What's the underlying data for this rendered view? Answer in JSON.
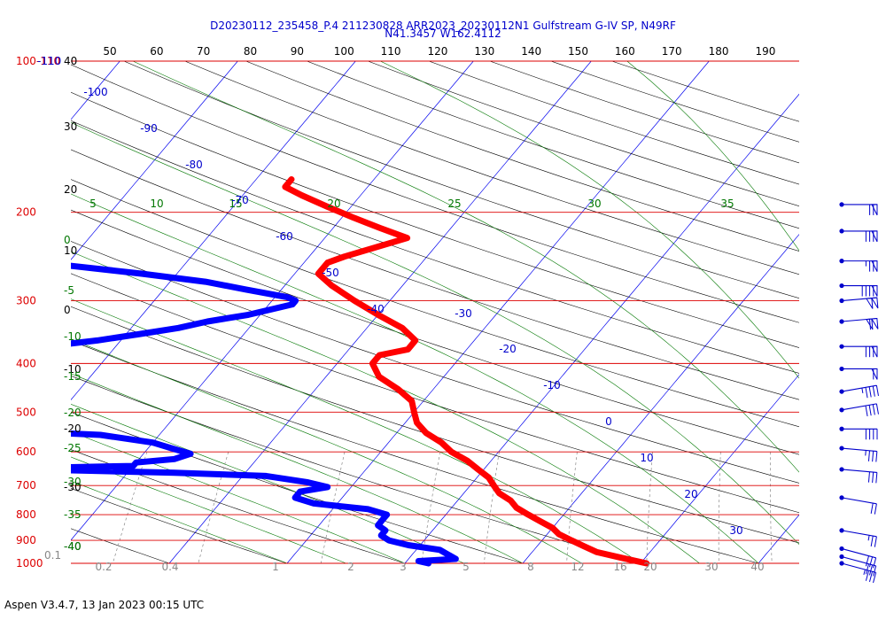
{
  "chart_data": {
    "type": "skew-t",
    "title_line1": "D20230112_235458_P.4 211230828 ARR2023_20230112N1 Gulfstream G-IV SP, N49RF",
    "title_line2": "N41.3457 W162.4112",
    "footer": "Aspen V3.4.7, 13 Jan 2023  00:15 UTC",
    "pressure_labels": [
      "100-110",
      "200",
      "300",
      "400",
      "500",
      "600",
      "700",
      "800",
      "900",
      "1000"
    ],
    "pressure_levels": [
      100,
      200,
      300,
      400,
      500,
      600,
      700,
      800,
      900,
      1000
    ],
    "top_ticks": [
      "50",
      "60",
      "70",
      "80",
      "90",
      "100",
      "110",
      "120",
      "130",
      "140",
      "150",
      "160",
      "170",
      "180",
      "190"
    ],
    "left_black_labels": [
      "40",
      "30",
      "20",
      "10",
      "0",
      "-10",
      "-20",
      "-30",
      "-40"
    ],
    "left_green_labels": [
      "0",
      "-5",
      "-10",
      "-15",
      "-20",
      "-25",
      "-30",
      "-35",
      "-40"
    ],
    "green_top_labels": [
      "5",
      "10",
      "15",
      "20",
      "25",
      "30",
      "35"
    ],
    "isotherm_labels": [
      "-100",
      "-90",
      "-80",
      "-70",
      "-60",
      "-50",
      "-40",
      "-30",
      "-20",
      "-10",
      "0",
      "10",
      "20",
      "30"
    ],
    "mixing_ratio_labels": [
      "0.2",
      "0.4",
      "1",
      "2",
      "3",
      "5",
      "8",
      "12",
      "16",
      "20",
      "30",
      "40"
    ],
    "corner_label": "0.1",
    "series": [
      {
        "color": "#ff0000",
        "points_ps": [
          [
            1000,
            10.5
          ],
          [
            975,
            8
          ],
          [
            950,
            5.5
          ],
          [
            925,
            4
          ],
          [
            900,
            2.5
          ],
          [
            875,
            1
          ],
          [
            850,
            0
          ],
          [
            825,
            -1.5
          ],
          [
            800,
            -3
          ],
          [
            775,
            -4.5
          ],
          [
            750,
            -5.5
          ],
          [
            725,
            -7
          ],
          [
            700,
            -8
          ],
          [
            675,
            -9
          ],
          [
            650,
            -10.5
          ],
          [
            625,
            -12
          ],
          [
            600,
            -14
          ],
          [
            575,
            -15.5
          ],
          [
            550,
            -17.5
          ],
          [
            525,
            -19
          ],
          [
            500,
            -20
          ],
          [
            475,
            -21
          ],
          [
            450,
            -23
          ],
          [
            425,
            -25.5
          ],
          [
            400,
            -27
          ],
          [
            385,
            -27
          ],
          [
            375,
            -25
          ],
          [
            360,
            -25
          ],
          [
            340,
            -27
          ],
          [
            320,
            -30
          ],
          [
            300,
            -33
          ],
          [
            280,
            -36
          ],
          [
            265,
            -38
          ],
          [
            252,
            -38
          ],
          [
            245,
            -37
          ],
          [
            225,
            -33
          ],
          [
            215,
            -36
          ],
          [
            205,
            -39
          ],
          [
            195,
            -42
          ],
          [
            185,
            -45
          ],
          [
            178,
            -47
          ],
          [
            172,
            -47
          ]
        ]
      },
      {
        "color": "#0000ff",
        "points_ps": [
          [
            1000,
            -8
          ],
          [
            990,
            -9
          ],
          [
            980,
            -6
          ],
          [
            960,
            -7
          ],
          [
            940,
            -8
          ],
          [
            920,
            -11
          ],
          [
            900,
            -13
          ],
          [
            880,
            -14
          ],
          [
            860,
            -14
          ],
          [
            840,
            -15
          ],
          [
            820,
            -15
          ],
          [
            800,
            -15
          ],
          [
            780,
            -17
          ],
          [
            760,
            -22
          ],
          [
            740,
            -24
          ],
          [
            720,
            -24
          ],
          [
            705,
            -22
          ],
          [
            690,
            -24
          ],
          [
            670,
            -28
          ],
          [
            660,
            -36
          ],
          [
            652,
            -46
          ],
          [
            648,
            -52
          ],
          [
            640,
            -40
          ],
          [
            630,
            -40
          ],
          [
            620,
            -37
          ],
          [
            605,
            -36
          ],
          [
            590,
            -38
          ],
          [
            575,
            -40
          ],
          [
            555,
            -45
          ],
          [
            545,
            -53
          ],
          [
            535,
            -60
          ],
          [
            520,
            -62
          ],
          [
            510,
            -64
          ],
          [
            505,
            -66
          ],
          [
            495,
            -64
          ],
          [
            470,
            -66
          ],
          [
            440,
            -69
          ],
          [
            430,
            -65
          ],
          [
            415,
            -63
          ],
          [
            400,
            -63
          ],
          [
            385,
            -60
          ],
          [
            370,
            -56
          ],
          [
            360,
            -52
          ],
          [
            350,
            -49
          ],
          [
            340,
            -46
          ],
          [
            330,
            -44
          ],
          [
            320,
            -41
          ],
          [
            305,
            -38
          ],
          [
            300,
            -38
          ],
          [
            295,
            -39
          ],
          [
            285,
            -43
          ],
          [
            275,
            -47
          ],
          [
            265,
            -53
          ],
          [
            255,
            -60
          ],
          [
            245,
            -65
          ],
          [
            232,
            -69
          ],
          [
            221,
            -72
          ],
          [
            205,
            -72
          ],
          [
            195,
            -71
          ]
        ]
      },
      {
        "color": "#0000ff",
        "dotted": true,
        "points_ps": [
          [
            465,
            -73
          ],
          [
            475,
            -71
          ],
          [
            485,
            -70
          ],
          [
            493,
            -69
          ],
          [
            500,
            -68
          ],
          [
            507,
            -67
          ],
          [
            515,
            -66
          ],
          [
            520,
            -64
          ],
          [
            525,
            -61
          ],
          [
            530,
            -59
          ],
          [
            533,
            -57
          ],
          [
            536,
            -55
          ],
          [
            540,
            -53
          ]
        ]
      }
    ],
    "wind_barbs": [
      {
        "p": 193,
        "speed": 70,
        "direction": 270
      },
      {
        "p": 218,
        "speed": 80,
        "direction": 270
      },
      {
        "p": 250,
        "speed": 75,
        "direction": 270
      },
      {
        "p": 280,
        "speed": 90,
        "direction": 270
      },
      {
        "p": 300,
        "speed": 100,
        "direction": 265
      },
      {
        "p": 330,
        "speed": 110,
        "direction": 265
      },
      {
        "p": 370,
        "speed": 80,
        "direction": 270
      },
      {
        "p": 410,
        "speed": 60,
        "direction": 270
      },
      {
        "p": 455,
        "speed": 45,
        "direction": 260
      },
      {
        "p": 495,
        "speed": 40,
        "direction": 260
      },
      {
        "p": 540,
        "speed": 40,
        "direction": 270
      },
      {
        "p": 590,
        "speed": 35,
        "direction": 275
      },
      {
        "p": 650,
        "speed": 30,
        "direction": 275
      },
      {
        "p": 740,
        "speed": 20,
        "direction": 280
      },
      {
        "p": 860,
        "speed": 25,
        "direction": 280
      },
      {
        "p": 935,
        "speed": 30,
        "direction": 285
      },
      {
        "p": 970,
        "speed": 30,
        "direction": 285
      },
      {
        "p": 1000,
        "speed": 35,
        "direction": 285
      }
    ]
  }
}
